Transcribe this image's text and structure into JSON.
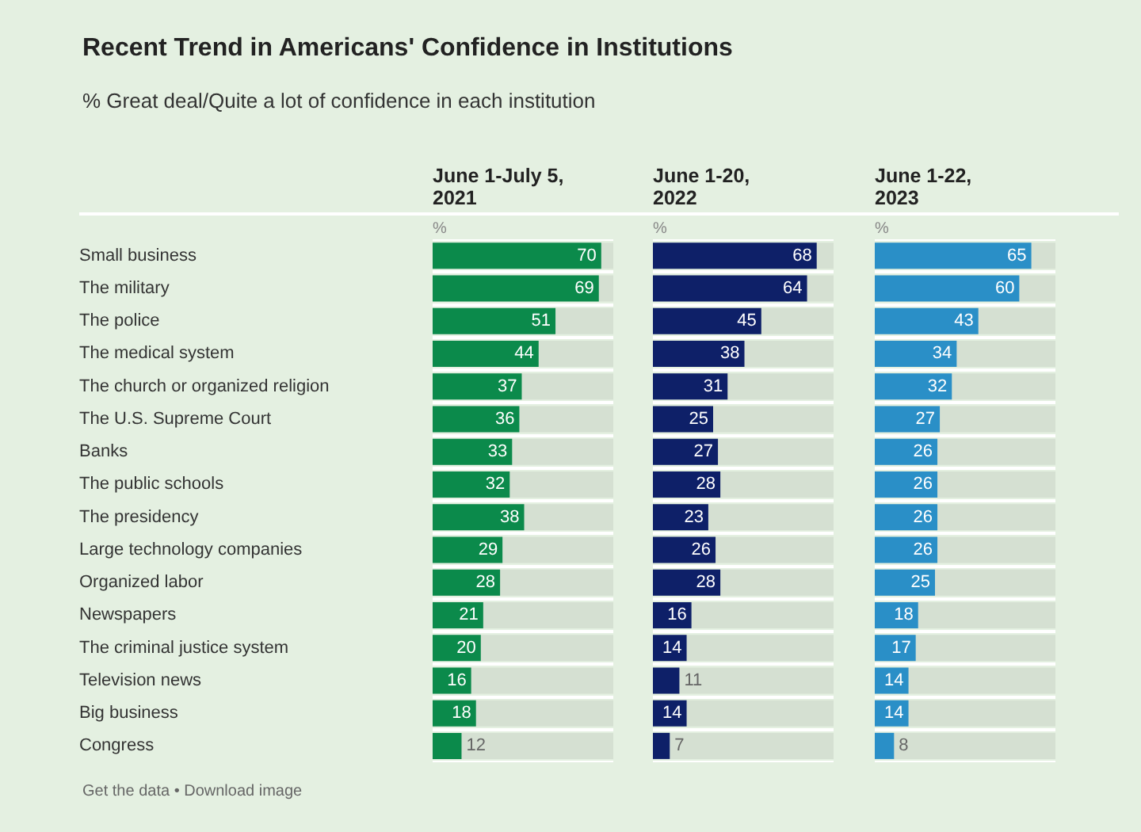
{
  "chart_data": [
    {
      "type": "other",
      "title": "Recent Trend in Americans' Confidence in Institutions",
      "subtitle": "% Great deal/Quite a lot of confidence in each institution",
      "annotations": [
        "Get the data • Download image"
      ]
    },
    {
      "type": "bar",
      "orientation": "horizontal",
      "title": "June 1-July 5, 2021",
      "xlabel": "%",
      "categories": [
        "Small business",
        "The military",
        "The police",
        "The medical system",
        "The church or organized religion",
        "The U.S. Supreme Court",
        "Banks",
        "The public schools",
        "The presidency",
        "Large technology companies",
        "Organized labor",
        "Newspapers",
        "The criminal justice system",
        "Television news",
        "Big business",
        "Congress"
      ],
      "values": [
        70,
        69,
        51,
        44,
        37,
        36,
        33,
        32,
        38,
        29,
        28,
        21,
        20,
        16,
        18,
        12
      ],
      "color": "#0b8a4b",
      "xlim": [
        0,
        75
      ],
      "grid": "y",
      "tick_labels": "y",
      "data_labels": true
    },
    {
      "type": "bar",
      "orientation": "horizontal",
      "title": "June 1-20, 2022",
      "xlabel": "%",
      "values": [
        68,
        64,
        45,
        38,
        31,
        25,
        27,
        28,
        23,
        26,
        28,
        16,
        14,
        11,
        14,
        7
      ],
      "color": "#0e2068",
      "xlim": [
        0,
        75
      ],
      "grid": "y",
      "tick_labels": false,
      "data_labels": true
    },
    {
      "type": "bar",
      "orientation": "horizontal",
      "title": "June 1-22, 2023",
      "xlabel": "%",
      "values": [
        65,
        60,
        43,
        34,
        32,
        27,
        26,
        26,
        26,
        26,
        25,
        18,
        17,
        14,
        14,
        8
      ],
      "color": "#2a8fc7",
      "xlim": [
        0,
        75
      ],
      "grid": "y",
      "tick_labels": false,
      "data_labels": true
    }
  ]
}
